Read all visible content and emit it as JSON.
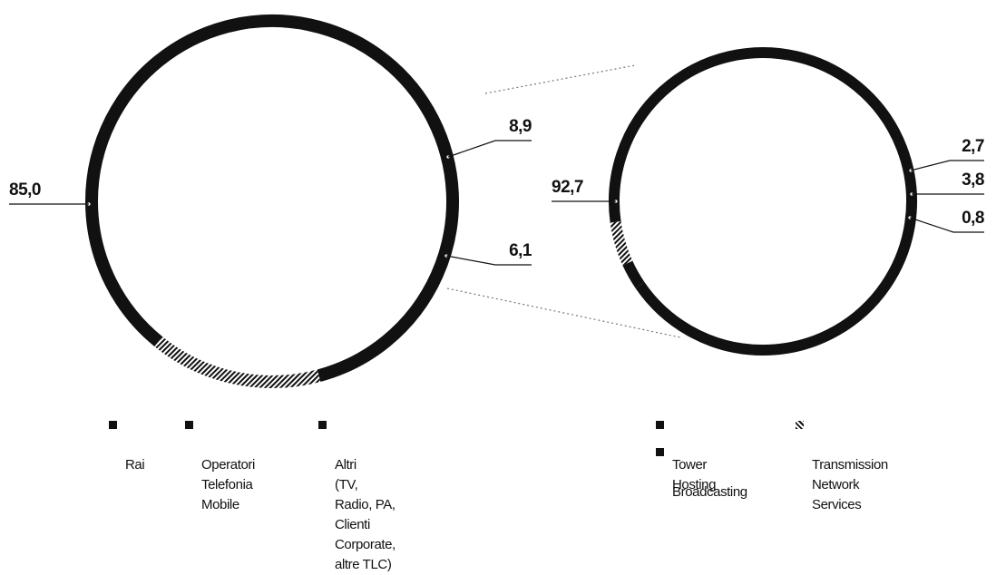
{
  "chart_data": [
    {
      "type": "pie",
      "series": [
        {
          "name": "Rai",
          "value": 85.0,
          "label": "85,0"
        },
        {
          "name": "Operatori Telefonia Mobile",
          "value": 8.9,
          "label": "8,9"
        },
        {
          "name": "Altri (TV, Radio, PA, Clienti Corporate, altre TLC)",
          "value": 6.1,
          "label": "6,1"
        }
      ],
      "legend": [
        "Rai",
        "Operatori\nTelefonia Mobile",
        "Altri\n(TV, Radio, PA,\nClienti Corporate,\naltre TLC)"
      ],
      "colors": [
        "#111111",
        "#111111",
        "#111111"
      ]
    },
    {
      "type": "pie",
      "series": [
        {
          "name": "Tower Hosting",
          "value": 92.7,
          "label": "92,7"
        },
        {
          "name": "Tower Hosting",
          "value": 2.7,
          "label": "2,7"
        },
        {
          "name": "Broadcasting",
          "value": 3.8,
          "label": "3,8"
        },
        {
          "name": "Transmission Network Services",
          "value": 0.8,
          "label": "0,8"
        }
      ],
      "legend": [
        "Tower Hosting",
        "Broadcasting",
        "Transmission\nNetwork Services"
      ],
      "colors": [
        "#111111",
        "#111111",
        "#111111"
      ]
    }
  ]
}
